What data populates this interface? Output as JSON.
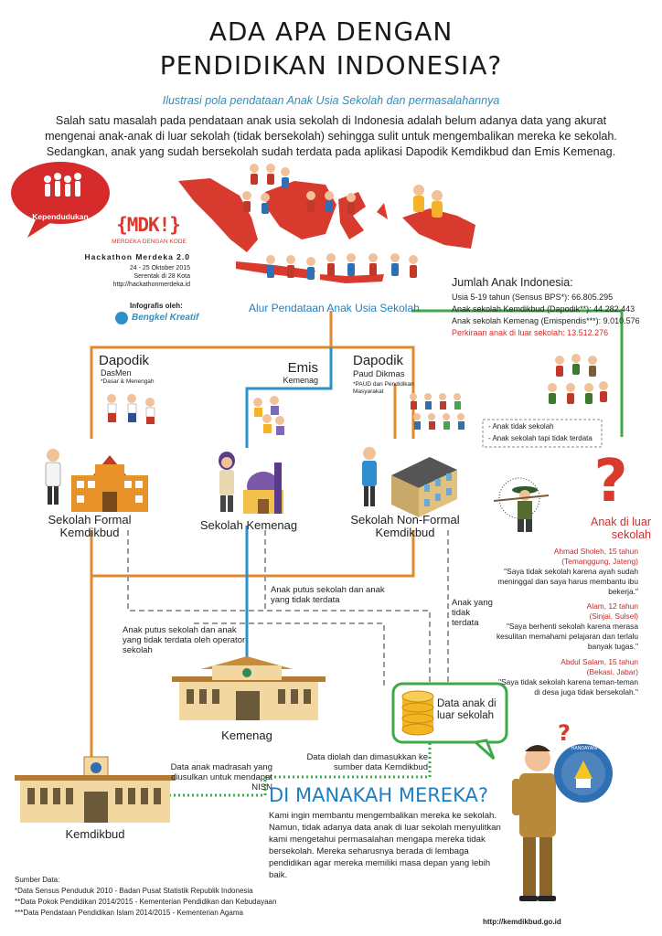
{
  "title_line1": "ADA APA DENGAN",
  "title_line2": "PENDIDIKAN INDONESIA?",
  "subtitle": "Ilustrasi pola pendataan Anak Usia Sekolah dan permasalahannya",
  "intro": "Salah satu masalah pada pendataan anak usia sekolah di Indonesia adalah belum adanya data yang akurat mengenai anak-anak di luar sekolah (tidak bersekolah) sehingga sulit untuk mengembalikan mereka ke sekolah. Sedangkan, anak yang sudah bersekolah sudah terdata pada aplikasi Dapodik Kemdikbud dan Emis Kemenag.",
  "bubble_label": "Kependudukan",
  "event": {
    "logo": "{MDK!}",
    "logo_tagline": "MERDEKA DENGAN KODE",
    "name": "Hackathon Merdeka 2.0",
    "dates": "24 - 25 Oktober 2015",
    "cities": "Serentak di 28 Kota",
    "url": "http://hackathonmerdeka.id"
  },
  "credit_label": "Infografis oleh:",
  "credit_name": "Bengkel Kreatif",
  "flow_title": "Alur Pendataan Anak Usia Sekolah",
  "stats": {
    "heading": "Jumlah Anak Indonesia:",
    "line1": "Usia 5-19 tahun (Sensus BPS*): 66.805.295",
    "line2": "Anak sekolah Kemdikbud (Dapodik**): 44.282.443",
    "line3": "Anak sekolah Kemenag (Emispendis***): 9.010.576",
    "line4": "Perkiraan anak di luar sekolah: 13.512.276"
  },
  "dapodik_dasmen": {
    "title": "Dapodik",
    "sub": "DasMen",
    "note": "*Dasar & Menengah"
  },
  "emis": {
    "title": "Emis",
    "sub": "Kemenag"
  },
  "dapodik_paud": {
    "title": "Dapodik",
    "sub": "Paud Dikmas",
    "note": "*PAUD dan Pendidikan Masyarakat"
  },
  "outside_list": {
    "item1": "- Anak tidak sekolah",
    "item2": "- Anak sekolah tapi tidak terdata"
  },
  "nodes": {
    "formal": "Sekolah Formal Kemdikbud",
    "kemenag_school": "Sekolah Kemenag",
    "nonformal": "Sekolah Non-Formal Kemdikbud",
    "outside": "Anak di luar sekolah",
    "kemenag": "Kemenag",
    "kemdikbud": "Kemdikbud",
    "data_outside": "Data anak di luar sekolah"
  },
  "quotes": [
    {
      "name": "Ahmad Sholeh, 15 tahun",
      "place": "(Temanggung, Jateng)",
      "text": "\"Saya tidak sekolah karena ayah sudah meninggal dan saya harus membantu ibu bekerja.\""
    },
    {
      "name": "Alam, 12 tahun",
      "place": "(Sinjai, Sulsel)",
      "text": "\"Saya berhenti sekolah karena merasa kesulitan memahami pelajaran dan terlalu banyak tugas.\""
    },
    {
      "name": "Abdul Salam, 15 tahun",
      "place": "(Bekasi, Jabar)",
      "text": "\"Saya tidak sekolah karena teman-teman di desa juga tidak bersekolah.\""
    }
  ],
  "flow_texts": {
    "putus1": "Anak putus sekolah dan anak yang tidak terdata",
    "putus2": "Anak putus sekolah dan anak yang tidak terdata oleh operator sekolah",
    "anak_tidak_terdata": "Anak yang tidak terdata",
    "madrasah": "Data anak madrasah yang diusulkan untuk mendapat NISN",
    "diolah": "Data diolah dan dimasukkan ke sumber data Kemdikbud"
  },
  "where": {
    "heading": "DI MANAKAH MEREKA?",
    "body": "Kami ingin membantu mengembalikan mereka ke sekolah. Namun, tidak adanya data anak di luar sekolah menyulitkan kami mengetahui permasalahan mengapa mereka tidak bersekolah. Mereka seharusnya berada di lembaga pendidikan agar mereka memiliki masa depan yang lebih baik."
  },
  "tut_wuri": "TUT WURI HANDAYANI",
  "sources": {
    "heading": "Sumber Data:",
    "s1": "*Data Sensus Penduduk 2010 - Badan Pusat Statistik Republik Indonesia",
    "s2": "**Data Pokok Pendidikan 2014/2015 - Kementerian Pendidikan dan Kebudayaan",
    "s3": "***Data Pendataan Pendidikan Islam 2014/2015 - Kementerian Agama"
  },
  "footer_url": "http://kemdikbud.go.id",
  "colors": {
    "orange": "#e08a2c",
    "blue": "#2b92c9",
    "green": "#3daa47",
    "gray": "#9a9a9a",
    "red": "#d32e2e"
  }
}
